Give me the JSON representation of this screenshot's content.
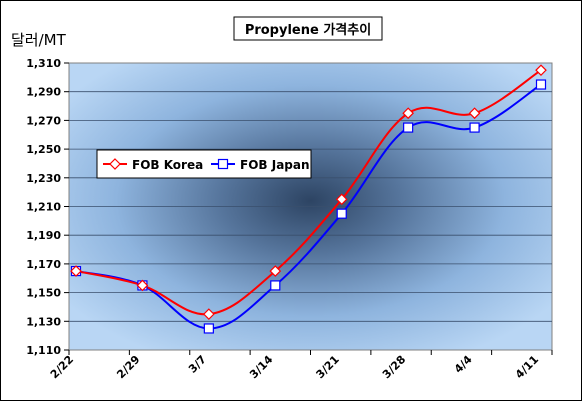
{
  "chart_data": {
    "type": "line",
    "title": "Propylene 가격추이",
    "ylabel": "달러/MT",
    "xlabel": "",
    "categories": [
      "2/22",
      "2/29",
      "3/7",
      "3/14",
      "3/21",
      "3/28",
      "4/4",
      "4/11"
    ],
    "ylim": [
      1110,
      1310
    ],
    "yticks": [
      1110,
      1130,
      1150,
      1170,
      1190,
      1210,
      1230,
      1250,
      1270,
      1290,
      1310
    ],
    "ytick_labels": [
      "1,110",
      "1,130",
      "1,150",
      "1,170",
      "1,190",
      "1,210",
      "1,230",
      "1,250",
      "1,270",
      "1,290",
      "1,310"
    ],
    "series": [
      {
        "name": "FOB Korea",
        "color": "#ff0000",
        "marker": "diamond",
        "values": [
          1165,
          1155,
          1135,
          1165,
          1215,
          1275,
          1275,
          1305
        ]
      },
      {
        "name": "FOB Japan",
        "color": "#0000ff",
        "marker": "square",
        "values": [
          1165,
          1155,
          1125,
          1155,
          1205,
          1265,
          1265,
          1295
        ]
      }
    ],
    "grid": true,
    "legend_position": "left-middle",
    "plot_background": "radial gradient, dark slate center to light blue edges"
  }
}
